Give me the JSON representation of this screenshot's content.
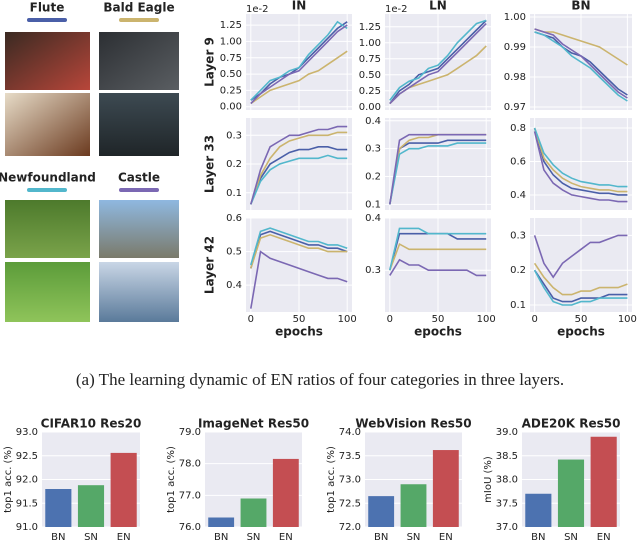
{
  "panel": {
    "categories": [
      {
        "name": "Flute",
        "color": "#4a5fa8"
      },
      {
        "name": "Bald Eagle",
        "color": "#cbb46e"
      },
      {
        "name": "Newfoundland",
        "color": "#52b7cc"
      },
      {
        "name": "Castle",
        "color": "#7b68b3"
      }
    ]
  },
  "caption": "(a)  The learning dynamic of EN ratios of four categories in three layers.",
  "chart_data": [
    {
      "type": "line",
      "title": "IN",
      "ylabel": "Layer 9",
      "offset_label": "1e-2",
      "x": [
        0,
        10,
        20,
        30,
        40,
        50,
        60,
        70,
        80,
        90,
        100
      ],
      "xlim": [
        -5,
        105
      ],
      "xticks": [
        0,
        50,
        100
      ],
      "xtick_labels": false,
      "ylim": [
        -0.05,
        1.42
      ],
      "yticks": [
        {
          "value": 0,
          "label": "0.00"
        },
        {
          "value": 0.25,
          "label": "0.25"
        },
        {
          "value": 0.5,
          "label": "0.50"
        },
        {
          "value": 0.75,
          "label": "0.75"
        },
        {
          "value": 1,
          "label": "1.00"
        },
        {
          "value": 1.25,
          "label": "1.25"
        }
      ],
      "grid": true,
      "series": [
        {
          "color": "#4a5fa8",
          "values": [
            0.1,
            0.2,
            0.35,
            0.45,
            0.5,
            0.6,
            0.75,
            0.9,
            1.05,
            1.2,
            1.3
          ]
        },
        {
          "color": "#cbb46e",
          "values": [
            0.05,
            0.15,
            0.25,
            0.3,
            0.35,
            0.4,
            0.5,
            0.55,
            0.65,
            0.75,
            0.85
          ]
        },
        {
          "color": "#52b7cc",
          "values": [
            0.1,
            0.25,
            0.4,
            0.45,
            0.55,
            0.6,
            0.8,
            0.95,
            1.1,
            1.3,
            1.2
          ]
        },
        {
          "color": "#7b68b3",
          "values": [
            0.05,
            0.2,
            0.3,
            0.4,
            0.5,
            0.55,
            0.7,
            0.85,
            1.0,
            1.15,
            1.25
          ]
        }
      ]
    },
    {
      "type": "line",
      "title": "LN",
      "offset_label": "1e-2",
      "x": [
        0,
        10,
        20,
        30,
        40,
        50,
        60,
        70,
        80,
        90,
        100
      ],
      "xlim": [
        -5,
        105
      ],
      "xticks": [
        0,
        50,
        100
      ],
      "xtick_labels": false,
      "ylim": [
        -0.05,
        1.45
      ],
      "yticks": [
        {
          "value": 0,
          "label": "0.00"
        },
        {
          "value": 0.25,
          "label": "0.25"
        },
        {
          "value": 0.5,
          "label": "0.50"
        },
        {
          "value": 0.75,
          "label": "0.75"
        },
        {
          "value": 1,
          "label": "1.00"
        },
        {
          "value": 1.25,
          "label": "1.25"
        }
      ],
      "grid": true,
      "series": [
        {
          "color": "#4a5fa8",
          "values": [
            0.05,
            0.25,
            0.35,
            0.5,
            0.55,
            0.6,
            0.75,
            0.9,
            1.05,
            1.2,
            1.35
          ]
        },
        {
          "color": "#cbb46e",
          "values": [
            0.05,
            0.2,
            0.3,
            0.35,
            0.4,
            0.45,
            0.5,
            0.6,
            0.7,
            0.8,
            0.95
          ]
        },
        {
          "color": "#52b7cc",
          "values": [
            0.1,
            0.3,
            0.4,
            0.45,
            0.6,
            0.65,
            0.8,
            1.0,
            1.15,
            1.3,
            1.35
          ]
        },
        {
          "color": "#7b68b3",
          "values": [
            0.05,
            0.2,
            0.3,
            0.4,
            0.5,
            0.55,
            0.7,
            0.85,
            1.0,
            1.15,
            1.3
          ]
        }
      ]
    },
    {
      "type": "line",
      "title": "BN",
      "x": [
        0,
        10,
        20,
        30,
        40,
        50,
        60,
        70,
        80,
        90,
        100
      ],
      "xlim": [
        -5,
        105
      ],
      "xticks": [
        0,
        50,
        100
      ],
      "xtick_labels": false,
      "ylim": [
        0.969,
        1.001
      ],
      "yticks": [
        0.97,
        0.98,
        0.99,
        {
          "value": 1,
          "label": "1.00"
        }
      ],
      "grid": true,
      "series": [
        {
          "color": "#4a5fa8",
          "values": [
            0.995,
            0.994,
            0.993,
            0.99,
            0.988,
            0.987,
            0.985,
            0.982,
            0.979,
            0.976,
            0.974
          ]
        },
        {
          "color": "#cbb46e",
          "values": [
            0.996,
            0.995,
            0.995,
            0.994,
            0.993,
            0.992,
            0.991,
            0.99,
            0.988,
            0.986,
            0.984
          ]
        },
        {
          "color": "#52b7cc",
          "values": [
            0.995,
            0.994,
            0.992,
            0.99,
            0.987,
            0.985,
            0.983,
            0.98,
            0.977,
            0.974,
            0.972
          ]
        },
        {
          "color": "#7b68b3",
          "values": [
            0.996,
            0.995,
            0.994,
            0.991,
            0.989,
            0.987,
            0.984,
            0.981,
            0.978,
            0.975,
            0.973
          ]
        }
      ]
    },
    {
      "type": "line",
      "ylabel": "Layer 33",
      "x": [
        0,
        10,
        20,
        30,
        40,
        50,
        60,
        70,
        80,
        90,
        100
      ],
      "xlim": [
        -5,
        105
      ],
      "xticks": [
        0,
        50,
        100
      ],
      "xtick_labels": false,
      "ylim": [
        0.04,
        0.36
      ],
      "yticks": [
        0.1,
        0.2,
        0.3
      ],
      "grid": true,
      "series": [
        {
          "color": "#4a5fa8",
          "values": [
            0.06,
            0.15,
            0.2,
            0.22,
            0.24,
            0.25,
            0.25,
            0.26,
            0.26,
            0.25,
            0.25
          ]
        },
        {
          "color": "#cbb46e",
          "values": [
            0.06,
            0.16,
            0.22,
            0.26,
            0.28,
            0.29,
            0.3,
            0.3,
            0.3,
            0.31,
            0.31
          ]
        },
        {
          "color": "#52b7cc",
          "values": [
            0.06,
            0.14,
            0.18,
            0.2,
            0.21,
            0.22,
            0.22,
            0.22,
            0.23,
            0.22,
            0.22
          ]
        },
        {
          "color": "#7b68b3",
          "values": [
            0.06,
            0.18,
            0.26,
            0.28,
            0.3,
            0.3,
            0.31,
            0.32,
            0.32,
            0.33,
            0.33
          ]
        }
      ]
    },
    {
      "type": "line",
      "x": [
        0,
        10,
        20,
        30,
        40,
        50,
        60,
        70,
        80,
        90,
        100
      ],
      "xlim": [
        -5,
        105
      ],
      "xticks": [
        0,
        50,
        100
      ],
      "xtick_labels": false,
      "ylim": [
        0.08,
        0.41
      ],
      "yticks": [
        0.1,
        0.2,
        0.3,
        0.4
      ],
      "grid": true,
      "series": [
        {
          "color": "#4a5fa8",
          "values": [
            0.1,
            0.3,
            0.32,
            0.32,
            0.32,
            0.32,
            0.33,
            0.33,
            0.33,
            0.33,
            0.33
          ]
        },
        {
          "color": "#cbb46e",
          "values": [
            0.1,
            0.3,
            0.33,
            0.34,
            0.34,
            0.35,
            0.35,
            0.35,
            0.35,
            0.35,
            0.35
          ]
        },
        {
          "color": "#52b7cc",
          "values": [
            0.1,
            0.28,
            0.3,
            0.3,
            0.31,
            0.31,
            0.31,
            0.32,
            0.32,
            0.32,
            0.32
          ]
        },
        {
          "color": "#7b68b3",
          "values": [
            0.1,
            0.33,
            0.35,
            0.35,
            0.35,
            0.35,
            0.35,
            0.35,
            0.35,
            0.35,
            0.35
          ]
        }
      ]
    },
    {
      "type": "line",
      "x": [
        0,
        10,
        20,
        30,
        40,
        50,
        60,
        70,
        80,
        90,
        100
      ],
      "xlim": [
        -5,
        105
      ],
      "xticks": [
        0,
        50,
        100
      ],
      "xtick_labels": false,
      "ylim": [
        0.31,
        0.86
      ],
      "yticks": [
        0.4,
        0.6,
        0.8
      ],
      "grid": true,
      "series": [
        {
          "color": "#4a5fa8",
          "values": [
            0.8,
            0.6,
            0.52,
            0.47,
            0.44,
            0.43,
            0.42,
            0.41,
            0.41,
            0.4,
            0.4
          ]
        },
        {
          "color": "#cbb46e",
          "values": [
            0.8,
            0.62,
            0.55,
            0.5,
            0.47,
            0.45,
            0.44,
            0.43,
            0.43,
            0.42,
            0.42
          ]
        },
        {
          "color": "#52b7cc",
          "values": [
            0.8,
            0.65,
            0.58,
            0.53,
            0.5,
            0.48,
            0.47,
            0.46,
            0.46,
            0.45,
            0.45
          ]
        },
        {
          "color": "#7b68b3",
          "values": [
            0.78,
            0.55,
            0.47,
            0.43,
            0.4,
            0.39,
            0.38,
            0.37,
            0.37,
            0.36,
            0.36
          ]
        }
      ]
    },
    {
      "type": "line",
      "ylabel": "Layer 42",
      "xlabel": "epochs",
      "x": [
        0,
        10,
        20,
        30,
        40,
        50,
        60,
        70,
        80,
        90,
        100
      ],
      "xlim": [
        -5,
        105
      ],
      "xticks": [
        0,
        50,
        100
      ],
      "xtick_labels": true,
      "ylim": [
        0.32,
        0.6
      ],
      "yticks": [
        0.4,
        0.5,
        0.6
      ],
      "grid": true,
      "series": [
        {
          "color": "#4a5fa8",
          "values": [
            0.45,
            0.55,
            0.56,
            0.55,
            0.54,
            0.53,
            0.52,
            0.52,
            0.51,
            0.51,
            0.5
          ]
        },
        {
          "color": "#cbb46e",
          "values": [
            0.45,
            0.54,
            0.55,
            0.54,
            0.53,
            0.52,
            0.51,
            0.51,
            0.5,
            0.5,
            0.5
          ]
        },
        {
          "color": "#52b7cc",
          "values": [
            0.46,
            0.56,
            0.57,
            0.56,
            0.55,
            0.54,
            0.53,
            0.53,
            0.52,
            0.52,
            0.51
          ]
        },
        {
          "color": "#7b68b3",
          "values": [
            0.33,
            0.5,
            0.48,
            0.47,
            0.46,
            0.45,
            0.44,
            0.43,
            0.42,
            0.42,
            0.41
          ]
        }
      ]
    },
    {
      "type": "line",
      "xlabel": "epochs",
      "x": [
        0,
        10,
        20,
        30,
        40,
        50,
        60,
        70,
        80,
        90,
        100
      ],
      "xlim": [
        -5,
        105
      ],
      "xticks": [
        0,
        50,
        100
      ],
      "xtick_labels": true,
      "ylim": [
        0.22,
        0.4
      ],
      "yticks": [
        0.3,
        0.4
      ],
      "grid": true,
      "series": [
        {
          "color": "#4a5fa8",
          "values": [
            0.3,
            0.37,
            0.37,
            0.37,
            0.37,
            0.37,
            0.37,
            0.36,
            0.36,
            0.36,
            0.36
          ]
        },
        {
          "color": "#cbb46e",
          "values": [
            0.3,
            0.35,
            0.34,
            0.34,
            0.34,
            0.34,
            0.34,
            0.34,
            0.34,
            0.34,
            0.34
          ]
        },
        {
          "color": "#52b7cc",
          "values": [
            0.3,
            0.38,
            0.38,
            0.38,
            0.37,
            0.37,
            0.37,
            0.37,
            0.37,
            0.37,
            0.37
          ]
        },
        {
          "color": "#7b68b3",
          "values": [
            0.29,
            0.32,
            0.31,
            0.31,
            0.3,
            0.3,
            0.3,
            0.3,
            0.3,
            0.29,
            0.29
          ]
        }
      ]
    },
    {
      "type": "line",
      "xlabel": "epochs",
      "x": [
        0,
        10,
        20,
        30,
        40,
        50,
        60,
        70,
        80,
        90,
        100
      ],
      "xlim": [
        -5,
        105
      ],
      "xticks": [
        0,
        50,
        100
      ],
      "xtick_labels": true,
      "ylim": [
        0.08,
        0.35
      ],
      "yticks": [
        0.1,
        0.2,
        0.3
      ],
      "grid": true,
      "series": [
        {
          "color": "#4a5fa8",
          "values": [
            0.2,
            0.16,
            0.12,
            0.11,
            0.11,
            0.12,
            0.12,
            0.12,
            0.13,
            0.13,
            0.13
          ]
        },
        {
          "color": "#cbb46e",
          "values": [
            0.22,
            0.18,
            0.15,
            0.13,
            0.13,
            0.14,
            0.14,
            0.15,
            0.15,
            0.15,
            0.16
          ]
        },
        {
          "color": "#52b7cc",
          "values": [
            0.2,
            0.15,
            0.11,
            0.1,
            0.1,
            0.11,
            0.11,
            0.12,
            0.12,
            0.12,
            0.12
          ]
        },
        {
          "color": "#7b68b3",
          "values": [
            0.3,
            0.22,
            0.18,
            0.22,
            0.24,
            0.26,
            0.28,
            0.28,
            0.29,
            0.3,
            0.3
          ]
        }
      ]
    },
    {
      "type": "bar",
      "title": "CIFAR10 Res20",
      "ylabel": "top1 acc. (%)",
      "categories": [
        "BN",
        "SN",
        "EN"
      ],
      "values": [
        91.8,
        91.88,
        92.56
      ],
      "colors": [
        "#4c72b0",
        "#55a868",
        "#c44e52"
      ],
      "ylim": [
        91,
        93
      ],
      "yticks": [
        {
          "value": 91,
          "label": "91.0"
        },
        91.5,
        {
          "value": 92,
          "label": "92.0"
        },
        92.5,
        {
          "value": 93,
          "label": "93.0"
        }
      ],
      "grid": true
    },
    {
      "type": "bar",
      "title": "ImageNet Res50",
      "ylabel": "top1 acc. (%)",
      "categories": [
        "BN",
        "SN",
        "EN"
      ],
      "values": [
        76.3,
        76.9,
        78.15
      ],
      "colors": [
        "#4c72b0",
        "#55a868",
        "#c44e52"
      ],
      "ylim": [
        76,
        79
      ],
      "yticks": [
        {
          "value": 76,
          "label": "76.0"
        },
        {
          "value": 77,
          "label": "77.0"
        },
        {
          "value": 78,
          "label": "78.0"
        },
        {
          "value": 79,
          "label": "79.0"
        }
      ],
      "grid": true
    },
    {
      "type": "bar",
      "title": "WebVision Res50",
      "ylabel": "top1 acc. (%)",
      "categories": [
        "BN",
        "SN",
        "EN"
      ],
      "values": [
        72.65,
        72.9,
        73.62
      ],
      "colors": [
        "#4c72b0",
        "#55a868",
        "#c44e52"
      ],
      "ylim": [
        72,
        74
      ],
      "yticks": [
        {
          "value": 72,
          "label": "72.0"
        },
        72.5,
        {
          "value": 73,
          "label": "73.0"
        },
        73.5,
        {
          "value": 74,
          "label": "74.0"
        }
      ],
      "grid": true
    },
    {
      "type": "bar",
      "title": "ADE20K Res50",
      "ylabel": "mIoU (%)",
      "categories": [
        "BN",
        "SN",
        "EN"
      ],
      "values": [
        37.7,
        38.42,
        38.9
      ],
      "colors": [
        "#4c72b0",
        "#55a868",
        "#c44e52"
      ],
      "ylim": [
        37,
        39
      ],
      "yticks": [
        {
          "value": 37,
          "label": "37.0"
        },
        37.5,
        {
          "value": 38,
          "label": "38.0"
        },
        38.5,
        {
          "value": 39,
          "label": "39.0"
        }
      ],
      "grid": true
    }
  ]
}
